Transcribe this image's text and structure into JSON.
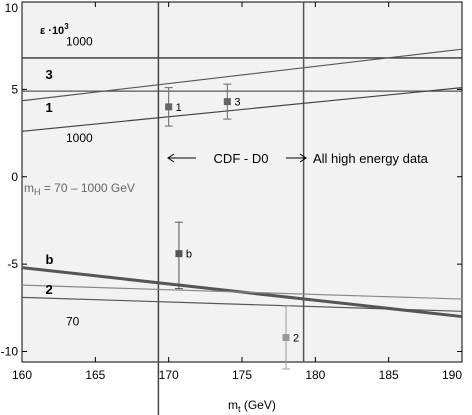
{
  "chart_data": {
    "type": "line",
    "ylabel": "ε ·10³",
    "ylabel_main": "ε ·10",
    "ylabel_exp": "3",
    "xlabel": "m_t (GeV)",
    "xlabel_main": "m",
    "xlabel_sub": "t",
    "xlabel_rest": " (GeV)",
    "xlim": [
      160,
      190
    ],
    "ylim": [
      -10.6,
      10
    ],
    "xticks": [
      160,
      165,
      170,
      175,
      180,
      185,
      190
    ],
    "yticks": [
      -10,
      -5,
      0,
      5,
      10
    ],
    "range_text": "CDF - D0",
    "high_energy_text": "All high energy data",
    "mh_text": "m_H = 70 – 1000 GeV",
    "mh_main": "m",
    "mh_sub": "H",
    "mh_rest": " = 70 – 1000 GeV",
    "vlines": [
      169.3,
      179.2
    ],
    "hlines": [
      {
        "name": "h-upper",
        "y": 6.8,
        "color": "#333333"
      },
      {
        "name": "h-lower",
        "y": 4.9,
        "color": "#555555"
      }
    ],
    "series": [
      {
        "key": "3_1000",
        "x": [
          160,
          190
        ],
        "y": [
          4.35,
          7.3
        ],
        "color": "#555555",
        "width": 1.2
      },
      {
        "key": "1_1000",
        "x": [
          160,
          190
        ],
        "y": [
          2.6,
          5.1
        ],
        "color": "#444444",
        "width": 1.2
      },
      {
        "key": "b",
        "x": [
          160,
          190
        ],
        "y": [
          -5.2,
          -8.0
        ],
        "color": "#555555",
        "width": 3
      },
      {
        "key": "2_70",
        "x": [
          160,
          190
        ],
        "y": [
          -6.2,
          -7.0
        ],
        "color": "#888888",
        "width": 1.2
      },
      {
        "key": "70",
        "x": [
          160,
          190
        ],
        "y": [
          -6.9,
          -7.7
        ],
        "color": "#555555",
        "width": 1.2
      }
    ],
    "curve_labels": [
      {
        "key": "1000-top",
        "text": "1000",
        "x": 163.0,
        "y": 7.5,
        "bold": false
      },
      {
        "key": "3",
        "text": "3",
        "x": 161.6,
        "y": 5.6,
        "bold": true
      },
      {
        "key": "1",
        "text": "1",
        "x": 161.6,
        "y": 3.7,
        "bold": true
      },
      {
        "key": "1000-bottom",
        "text": "1000",
        "x": 163.0,
        "y": 2.0,
        "bold": false
      },
      {
        "key": "b",
        "text": "b",
        "x": 161.6,
        "y": -5.0,
        "bold": true
      },
      {
        "key": "2",
        "text": "2",
        "x": 161.6,
        "y": -6.7,
        "bold": true
      },
      {
        "key": "70",
        "text": "70",
        "x": 163.0,
        "y": -8.5,
        "bold": false
      }
    ],
    "points": [
      {
        "label": "1",
        "x": 170.0,
        "y": 4.0,
        "ylow": 2.9,
        "yhigh": 5.1,
        "color": "#666666"
      },
      {
        "label": "3",
        "x": 174.0,
        "y": 4.3,
        "ylow": 3.3,
        "yhigh": 5.3,
        "color": "#666666"
      },
      {
        "label": "b",
        "x": 170.7,
        "y": -4.4,
        "ylow": -6.4,
        "yhigh": -2.6,
        "color": "#555555"
      },
      {
        "label": "2",
        "x": 178.0,
        "y": -9.2,
        "ylow": -11.0,
        "yhigh": -7.4,
        "color": "#999999"
      }
    ],
    "grid": false,
    "background": "#f2f2f2"
  }
}
